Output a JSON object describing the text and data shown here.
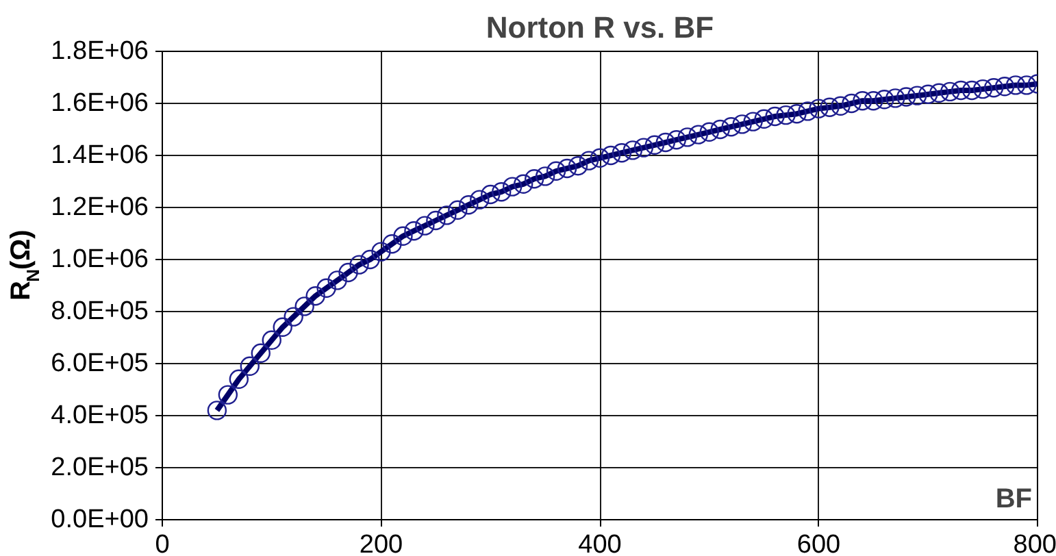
{
  "chart_data": {
    "type": "line",
    "title": "Norton R vs. BF",
    "xlabel": "BF",
    "ylabel": "R$_{N}$(Ω)",
    "x": [
      50,
      60,
      70,
      80,
      90,
      100,
      110,
      120,
      130,
      140,
      150,
      160,
      170,
      180,
      190,
      200,
      210,
      220,
      230,
      240,
      250,
      260,
      270,
      280,
      290,
      300,
      310,
      320,
      330,
      340,
      350,
      360,
      370,
      380,
      390,
      400,
      410,
      420,
      430,
      440,
      450,
      460,
      470,
      480,
      490,
      500,
      510,
      520,
      530,
      540,
      550,
      560,
      570,
      580,
      590,
      600,
      610,
      620,
      630,
      640,
      650,
      660,
      670,
      680,
      690,
      700,
      710,
      720,
      730,
      740,
      750,
      760,
      770,
      780,
      790,
      800
    ],
    "series": [
      {
        "color": "#1f1f8f",
        "values": [
          420000,
          480000,
          540000,
          590000,
          640000,
          690000,
          740000,
          780000,
          820000,
          860000,
          890000,
          920000,
          950000,
          980000,
          1000000,
          1030000,
          1060000,
          1090000,
          1110000,
          1130000,
          1150000,
          1170000,
          1190000,
          1210000,
          1230000,
          1250000,
          1260000,
          1280000,
          1290000,
          1310000,
          1320000,
          1340000,
          1350000,
          1360000,
          1380000,
          1390000,
          1400000,
          1410000,
          1420000,
          1430000,
          1440000,
          1450000,
          1460000,
          1470000,
          1480000,
          1490000,
          1500000,
          1510000,
          1520000,
          1530000,
          1540000,
          1550000,
          1555000,
          1560000,
          1570000,
          1580000,
          1585000,
          1590000,
          1600000,
          1610000,
          1610000,
          1615000,
          1620000,
          1625000,
          1630000,
          1635000,
          1640000,
          1645000,
          1650000,
          1650000,
          1655000,
          1660000,
          1665000,
          1670000,
          1670000,
          1675000
        ]
      }
    ],
    "xlim": [
      0,
      800
    ],
    "xticks": [
      0,
      200,
      400,
      600,
      800
    ],
    "ylim": [
      0,
      1800000
    ],
    "yticks": [
      {
        "value": 0,
        "label": "0.0E+00"
      },
      {
        "value": 200000,
        "label": "2.0E+05"
      },
      {
        "value": 400000,
        "label": "4.0E+05"
      },
      {
        "value": 600000,
        "label": "6.0E+05"
      },
      {
        "value": 800000,
        "label": "8.0E+05"
      },
      {
        "value": 1000000,
        "label": "1.0E+06"
      },
      {
        "value": 1200000,
        "label": "1.2E+06"
      },
      {
        "value": 1400000,
        "label": "1.4E+06"
      },
      {
        "value": 1600000,
        "label": "1.6E+06"
      },
      {
        "value": 1800000,
        "label": "1.8E+06"
      }
    ],
    "grid": true,
    "marker": "circle",
    "line_style": "solid"
  }
}
